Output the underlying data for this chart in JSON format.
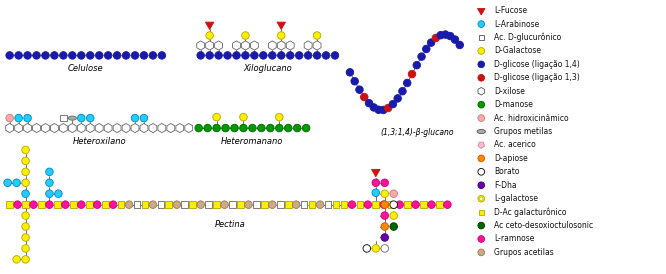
{
  "bg_color": "#ffffff",
  "labels": {
    "celulose": "Celulose",
    "xiloglucano": "Xiloglucano",
    "heteroxilano": "Heteroxilano",
    "heteromanano": "Heteromanano",
    "beta_glucano": "(1,3;1,4)-β-glucano",
    "pectina": "Pectina"
  },
  "colors": {
    "dark_blue": "#1a1aaa",
    "red": "#cc1111",
    "yellow": "#ffee00",
    "cyan": "#22ccff",
    "green": "#009900",
    "dark_green": "#006600",
    "pink": "#ffaaaa",
    "grey": "#aaaaaa",
    "orange": "#ff8800",
    "purple": "#6600aa",
    "hot_pink": "#ff1199",
    "tan": "#ccaa88",
    "white": "#ffffff",
    "black": "#000000",
    "edge": "#333333",
    "edge2": "#666666",
    "yellow_edge": "#aaaa00",
    "glucuronic_fill": "#ffffff",
    "glucuronic_edge": "#555555"
  },
  "legend": [
    {
      "label": "L-Fucose",
      "shape": "triangle",
      "fc": "#cc1111",
      "ec": "#cc1111"
    },
    {
      "label": "L-Arabinose",
      "shape": "circle",
      "fc": "#22ccff",
      "ec": "#0088bb"
    },
    {
      "label": "Ac. D-glucurônico",
      "shape": "diamond",
      "fc": "#ffffff",
      "ec": "#555555"
    },
    {
      "label": "D-Galactose",
      "shape": "circle",
      "fc": "#ffee00",
      "ec": "#aaaa00"
    },
    {
      "label": "D-glicose (ligação 1,4)",
      "shape": "circle",
      "fc": "#1a1aaa",
      "ec": "#1a1aaa"
    },
    {
      "label": "D-glicose (ligação 1,3)",
      "shape": "circle",
      "fc": "#cc1111",
      "ec": "#cc1111"
    },
    {
      "label": "D-xilose",
      "shape": "hexstar",
      "fc": "#ffffff",
      "ec": "#555555"
    },
    {
      "label": "D-manose",
      "shape": "circle",
      "fc": "#009900",
      "ec": "#006600"
    },
    {
      "label": "Ac. hidroxicinâmico",
      "shape": "circle",
      "fc": "#ffaaaa",
      "ec": "#cc7777"
    },
    {
      "label": "Grupos metilas",
      "shape": "ellipse",
      "fc": "#aaaaaa",
      "ec": "#555555"
    },
    {
      "label": "Ac. acerico",
      "shape": "pentagon",
      "fc": "#ffbbcc",
      "ec": "#cc8899"
    },
    {
      "label": "D-apiose",
      "shape": "circle",
      "fc": "#ff8800",
      "ec": "#cc5500"
    },
    {
      "label": "Borato",
      "shape": "circle",
      "fc": "#ffffff",
      "ec": "#000000"
    },
    {
      "label": "F-Dha",
      "shape": "circle",
      "fc": "#6600aa",
      "ec": "#440077"
    },
    {
      "label": "L-galactose",
      "shape": "circle_ring",
      "fc": "#ffee00",
      "ec": "#aaaa00"
    },
    {
      "label": "D-Ac galacturônico",
      "shape": "diamond",
      "fc": "#ffee00",
      "ec": "#aaaa00"
    },
    {
      "label": "Ac ceto-desoxioctulosonic",
      "shape": "circle",
      "fc": "#006600",
      "ec": "#003300"
    },
    {
      "label": "L-ramnose",
      "shape": "circle",
      "fc": "#ff1199",
      "ec": "#cc0077"
    },
    {
      "label": "Grupos acetilas",
      "shape": "circle",
      "fc": "#ccaa88",
      "ec": "#997755"
    }
  ]
}
